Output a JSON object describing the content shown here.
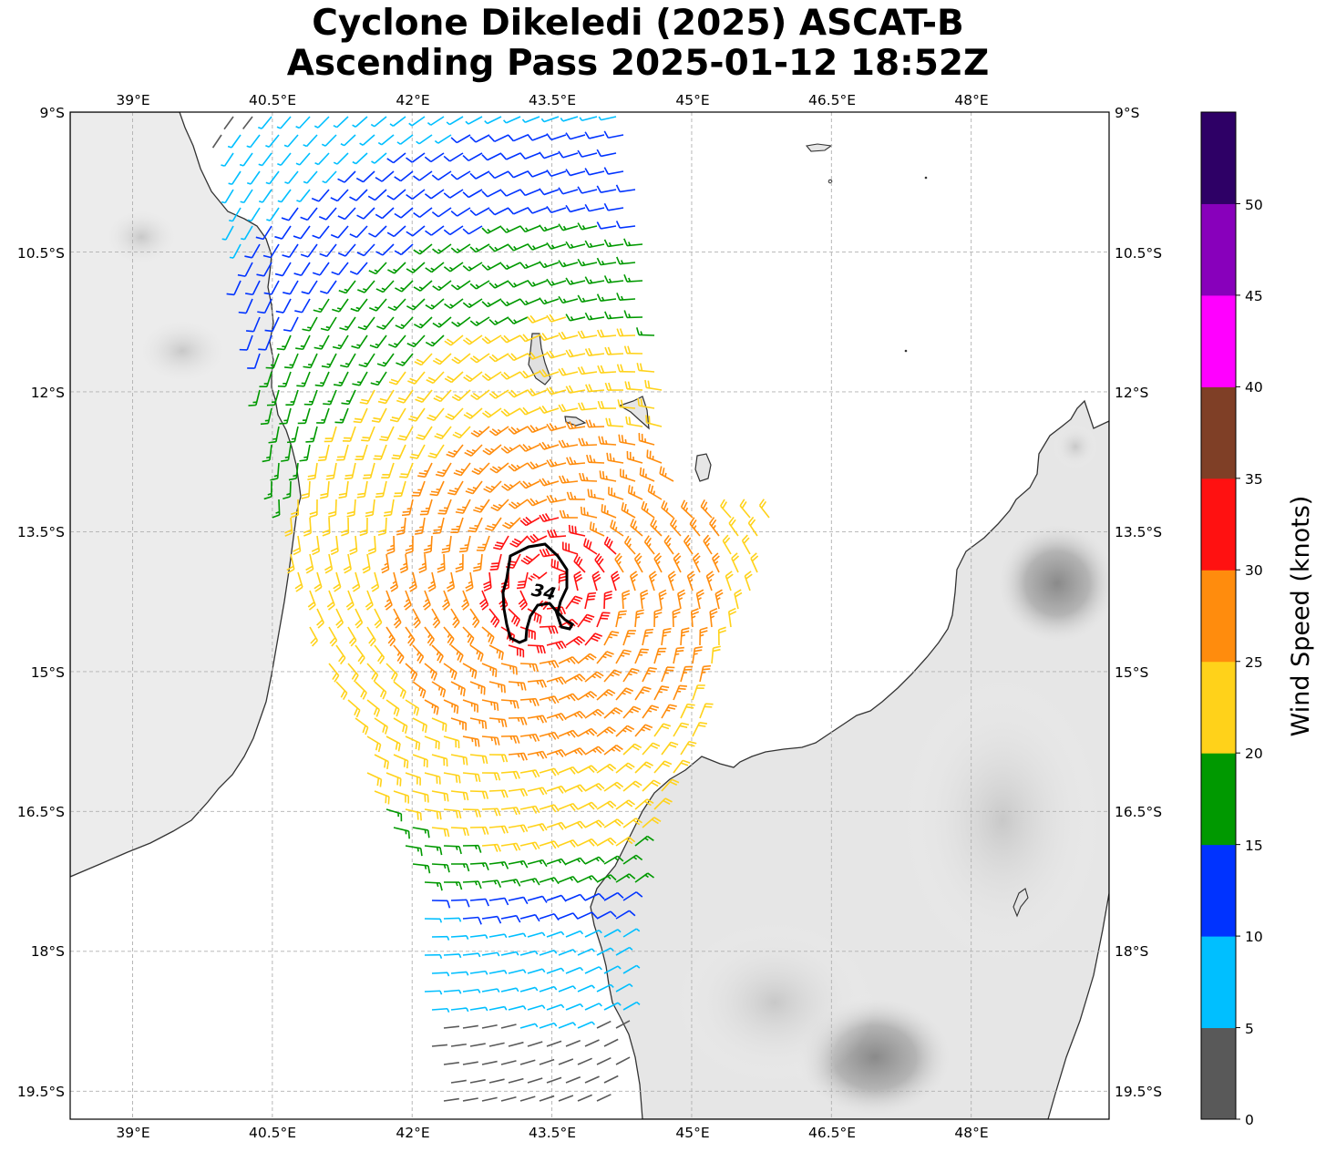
{
  "title": {
    "line1": "Cyclone Dikeledi (2025) ASCAT-B",
    "line2": "Ascending Pass 2025-01-12 18:52Z"
  },
  "map": {
    "lon_range": [
      38.33,
      49.48
    ],
    "lat_range": [
      -19.8,
      -9.0
    ],
    "lon_ticks": [
      "39°E",
      "40.5°E",
      "42°E",
      "43.5°E",
      "45°E",
      "46.5°E",
      "48°E"
    ],
    "lat_ticks": [
      "9°S",
      "10.5°S",
      "12°S",
      "13.5°S",
      "15°S",
      "16.5°S",
      "18°S",
      "19.5°S"
    ],
    "contour_label": "34",
    "center": {
      "lon": 43.5,
      "lat": -14.1
    }
  },
  "colorbar": {
    "label": "Wind Speed (knots)",
    "ticks": [
      "0",
      "5",
      "10",
      "15",
      "20",
      "25",
      "30",
      "35",
      "40",
      "45",
      "50"
    ],
    "colors": [
      "#595959",
      "#00bfff",
      "#0033ff",
      "#009900",
      "#ffd21a",
      "#ff8c0d",
      "#ff1111",
      "#7f3f26",
      "#ff00ff",
      "#8800bb",
      "#2e0066"
    ]
  }
}
